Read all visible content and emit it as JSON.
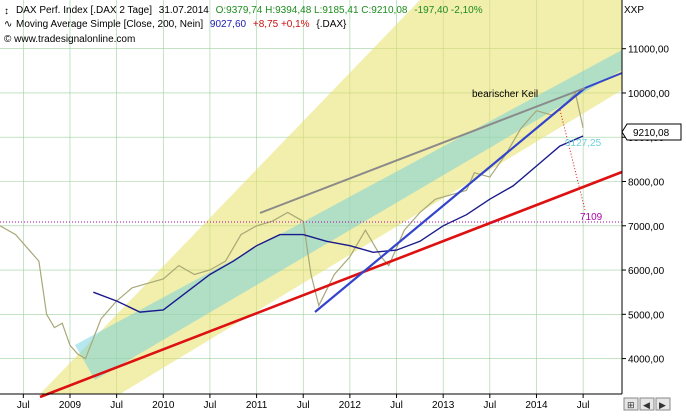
{
  "header": {
    "line1_name": "DAX Perf. Index [.DAX  2 Tage]",
    "line1_date": "31.07.2014",
    "line1_ohlc": "O:9379,74 H:9394,48 L:9185,41 C:9210,08",
    "line1_change": "-197,40 -2,10%",
    "line2_name": "Moving Average Simple [Close, 200, Nein]",
    "line2_value": "9027,60",
    "line2_change": "+8,75 +0,1%",
    "line2_symbol": "{.DAX}",
    "line3_text": "© www.tradesignalonline.com"
  },
  "labels": {
    "axis_symbol": "XXP",
    "wedge_label": "bearischer Keil",
    "ma_value_label": "9127,25",
    "target_label": "7109",
    "price_badge": "9210,08"
  },
  "colors": {
    "price": "#a8a878",
    "ma200": "#1a1a8c",
    "support_red": "#dd1111",
    "wedge_blue": "#3344cc",
    "wedge_gray": "#8a8a8a",
    "yellow_channel": "#e8e066",
    "cyan_channel": "#6ed0e0",
    "target_dotted": "#aa00aa",
    "header_green": "#1e8c1e",
    "header_blue": "#1a1ab4",
    "header_red": "#cc1111"
  },
  "chart_data": {
    "type": "line",
    "x_ticks": [
      "Jul",
      "2009",
      "Jul",
      "2010",
      "Jul",
      "2011",
      "Jul",
      "2012",
      "Jul",
      "2013",
      "Jul",
      "2014",
      "Jul"
    ],
    "x_range": [
      "2008-04",
      "2014-12"
    ],
    "y_ticks": [
      "4000,00",
      "5000,00",
      "6000,00",
      "7000,00",
      "8000,00",
      "9000,00",
      "10000,00",
      "11000,00"
    ],
    "ylim": [
      3200,
      12100
    ],
    "grid": true,
    "series": [
      {
        "name": "DAX Perf. Index",
        "x": [
          "2008-04",
          "2008-06",
          "2008-08",
          "2008-09",
          "2008-10",
          "2008-11",
          "2008-12",
          "2009-01",
          "2009-02",
          "2009-03",
          "2009-05",
          "2009-07",
          "2009-09",
          "2009-11",
          "2010-01",
          "2010-03",
          "2010-05",
          "2010-07",
          "2010-09",
          "2010-11",
          "2011-01",
          "2011-03",
          "2011-05",
          "2011-07",
          "2011-08",
          "2011-09",
          "2011-11",
          "2012-01",
          "2012-03",
          "2012-05",
          "2012-06",
          "2012-08",
          "2012-10",
          "2012-12",
          "2013-02",
          "2013-04",
          "2013-05",
          "2013-07",
          "2013-09",
          "2013-11",
          "2014-01",
          "2014-03",
          "2014-05",
          "2014-06",
          "2014-07"
        ],
        "values": [
          7000,
          6800,
          6400,
          6200,
          5000,
          4700,
          4800,
          4300,
          4100,
          4000,
          4900,
          5300,
          5600,
          5700,
          5800,
          6100,
          5900,
          6000,
          6200,
          6800,
          7000,
          7100,
          7300,
          7100,
          5900,
          5200,
          5900,
          6300,
          6900,
          6300,
          6100,
          6900,
          7300,
          7600,
          7700,
          7800,
          8200,
          8100,
          8600,
          9200,
          9600,
          9500,
          9800,
          10000,
          9210
        ]
      },
      {
        "name": "Moving Average Simple [Close, 200, Nein]",
        "x": [
          "2009-04",
          "2009-07",
          "2009-10",
          "2010-01",
          "2010-04",
          "2010-07",
          "2010-10",
          "2011-01",
          "2011-04",
          "2011-07",
          "2011-10",
          "2012-01",
          "2012-04",
          "2012-07",
          "2012-10",
          "2013-01",
          "2013-04",
          "2013-07",
          "2013-10",
          "2014-01",
          "2014-04",
          "2014-07"
        ],
        "values": [
          5500,
          5300,
          5050,
          5100,
          5500,
          5900,
          6200,
          6550,
          6800,
          6800,
          6650,
          6550,
          6400,
          6450,
          6650,
          7000,
          7250,
          7600,
          7900,
          8350,
          8800,
          9027.6
        ]
      }
    ],
    "annotations": [
      "bearischer Keil",
      "9127,25",
      "7109",
      "9210,08"
    ]
  }
}
